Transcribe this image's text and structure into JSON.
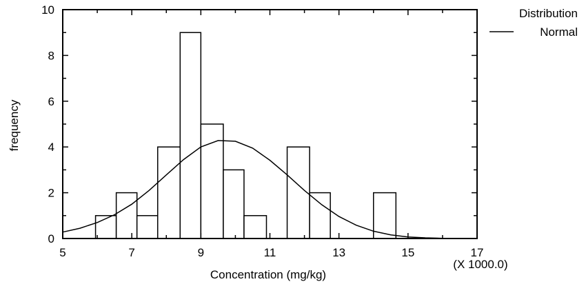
{
  "chart_data": {
    "type": "bar",
    "xlabel": "Concentration (mg/kg)",
    "ylabel": "frequency",
    "x_multiplier_label": "(X 1000.0)",
    "xlim": [
      5,
      17
    ],
    "ylim": [
      0,
      10
    ],
    "x_ticks": [
      5,
      7,
      9,
      11,
      13,
      15,
      17
    ],
    "y_ticks": [
      0,
      2,
      4,
      6,
      8,
      10
    ],
    "bins": [
      {
        "start": 5.95,
        "end": 6.55,
        "count": 1
      },
      {
        "start": 6.55,
        "end": 7.15,
        "count": 2
      },
      {
        "start": 7.15,
        "end": 7.75,
        "count": 1
      },
      {
        "start": 7.75,
        "end": 8.4,
        "count": 4
      },
      {
        "start": 8.4,
        "end": 9.0,
        "count": 9
      },
      {
        "start": 9.0,
        "end": 9.65,
        "count": 5
      },
      {
        "start": 9.65,
        "end": 10.25,
        "count": 3
      },
      {
        "start": 10.25,
        "end": 10.9,
        "count": 1
      },
      {
        "start": 10.9,
        "end": 11.5,
        "count": 0
      },
      {
        "start": 11.5,
        "end": 12.15,
        "count": 4
      },
      {
        "start": 12.15,
        "end": 12.75,
        "count": 2
      },
      {
        "start": 12.75,
        "end": 13.4,
        "count": 0
      },
      {
        "start": 13.4,
        "end": 14.0,
        "count": 0
      },
      {
        "start": 14.0,
        "end": 14.65,
        "count": 2
      },
      {
        "start": 14.65,
        "end": 15.25,
        "count": 0
      },
      {
        "start": 15.25,
        "end": 15.85,
        "count": 0
      },
      {
        "start": 15.85,
        "end": 16.45,
        "count": 0
      },
      {
        "start": 16.45,
        "end": 17.0,
        "count": 0
      }
    ],
    "fitted_curve": {
      "name": "Normal",
      "x": [
        5.0,
        5.5,
        6.0,
        6.5,
        7.0,
        7.5,
        8.0,
        8.5,
        9.0,
        9.5,
        10.0,
        10.5,
        11.0,
        11.5,
        12.0,
        12.5,
        13.0,
        13.5,
        14.0,
        14.5,
        15.0,
        15.5,
        16.0,
        16.5,
        17.0
      ],
      "y": [
        0.28,
        0.45,
        0.7,
        1.04,
        1.5,
        2.1,
        2.78,
        3.45,
        4.0,
        4.28,
        4.25,
        3.95,
        3.42,
        2.78,
        2.1,
        1.48,
        0.96,
        0.58,
        0.32,
        0.16,
        0.07,
        0.03,
        0.01,
        0.0,
        0.0
      ]
    },
    "legend": {
      "title": "Distribution",
      "entries": [
        "Normal"
      ],
      "placement": "top-right"
    }
  }
}
